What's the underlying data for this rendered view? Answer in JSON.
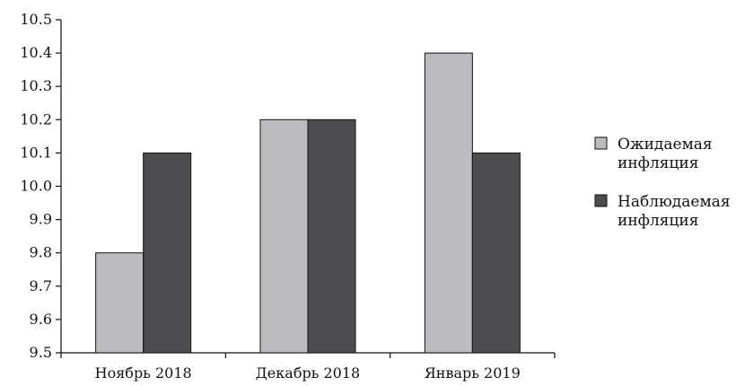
{
  "chart_data": {
    "type": "bar",
    "categories": [
      "Ноябрь 2018",
      "Декабрь 2018",
      "Январь 2019"
    ],
    "series": [
      {
        "name": "Ожидаемая инфляция",
        "name_lines": [
          "Ожидаемая",
          "инфляция"
        ],
        "values": [
          9.8,
          10.2,
          10.4
        ],
        "color": "#bcbcc0"
      },
      {
        "name": "Наблюдаемая инфляция",
        "name_lines": [
          "Наблюдаемая",
          "инфляция"
        ],
        "values": [
          10.1,
          10.2,
          10.1
        ],
        "color": "#4d4d4f"
      }
    ],
    "ylim": [
      9.5,
      10.5
    ],
    "yticks": [
      "9.5",
      "9.6",
      "9.7",
      "9.8",
      "9.9",
      "10.0",
      "10.1",
      "10.2",
      "10.3",
      "10.4",
      "10.5"
    ],
    "title": "",
    "xlabel": "",
    "ylabel": "",
    "grid": false,
    "legend_position": "right"
  }
}
